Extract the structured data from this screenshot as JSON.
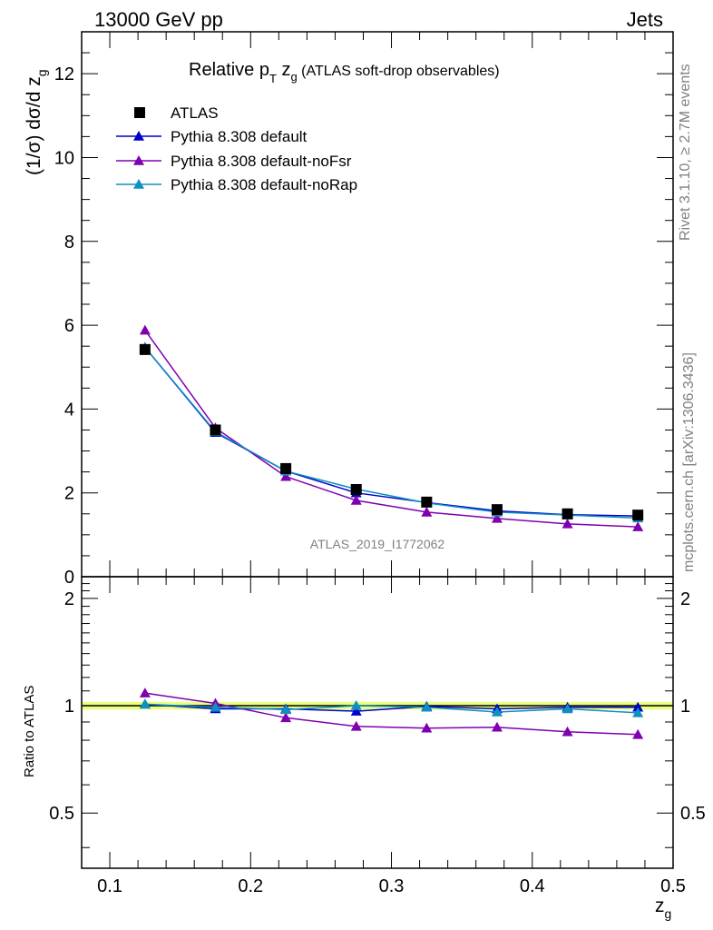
{
  "header": {
    "left": "13000 GeV pp",
    "right": "Jets"
  },
  "side_labels": {
    "rivet": "Rivet 3.1.10, ≥ 2.7M events",
    "mcplots": "mcplots.cern.ch [arXiv:1306.3436]"
  },
  "title": {
    "main": "Relative p",
    "sub_T": "T",
    "z": " z",
    "sub_g": "g",
    "paren": " (ATLAS soft-drop observables)"
  },
  "watermark": "ATLAS_2019_I1772062",
  "colors": {
    "ATLAS": "#000000",
    "default": "#0000cc",
    "noFsr": "#8000b0",
    "noRap": "#1090c0",
    "band": "#e8ff80"
  },
  "chart_data": [
    {
      "type": "line",
      "panel": "main",
      "xlim": [
        0.08,
        0.5
      ],
      "ylim": [
        0,
        13
      ],
      "ylabel": "(1/σ) dσ/d z_g",
      "y_ticks": [
        "0",
        "2",
        "4",
        "6",
        "8",
        "10",
        "12"
      ],
      "x": [
        0.125,
        0.175,
        0.225,
        0.275,
        0.325,
        0.375,
        0.425,
        0.475
      ],
      "series": [
        {
          "name": "ATLAS",
          "values": [
            5.42,
            3.5,
            2.58,
            2.08,
            1.78,
            1.6,
            1.5,
            1.47
          ]
        },
        {
          "name": "Pythia 8.308 default",
          "values": [
            5.47,
            3.44,
            2.52,
            2.0,
            1.77,
            1.57,
            1.48,
            1.45
          ]
        },
        {
          "name": "Pythia 8.308 default-noFsr",
          "values": [
            5.88,
            3.55,
            2.39,
            1.82,
            1.54,
            1.39,
            1.26,
            1.19
          ]
        },
        {
          "name": "Pythia 8.308 default-noRap",
          "values": [
            5.47,
            3.46,
            2.52,
            2.09,
            1.76,
            1.54,
            1.47,
            1.4
          ]
        }
      ]
    },
    {
      "type": "line",
      "panel": "ratio",
      "xlabel": "z_g",
      "ylabel": "Ratio to ATLAS",
      "xlim": [
        0.08,
        0.5
      ],
      "ylim": [
        0.35,
        2.3
      ],
      "x_ticks": [
        "0.1",
        "0.2",
        "0.3",
        "0.4",
        "0.5"
      ],
      "y_ticks": [
        "0.5",
        "1",
        "2"
      ],
      "x": [
        0.125,
        0.175,
        0.225,
        0.275,
        0.325,
        0.375,
        0.425,
        0.475
      ],
      "series": [
        {
          "name": "Pythia 8.308 default",
          "values": [
            1.01,
            0.98,
            0.98,
            0.965,
            0.995,
            0.98,
            0.99,
            0.99
          ]
        },
        {
          "name": "Pythia 8.308 default-noFsr",
          "values": [
            1.085,
            1.015,
            0.925,
            0.875,
            0.865,
            0.87,
            0.845,
            0.83
          ]
        },
        {
          "name": "Pythia 8.308 default-noRap",
          "values": [
            1.01,
            0.99,
            0.975,
            1.0,
            0.99,
            0.96,
            0.98,
            0.955
          ]
        }
      ]
    }
  ]
}
